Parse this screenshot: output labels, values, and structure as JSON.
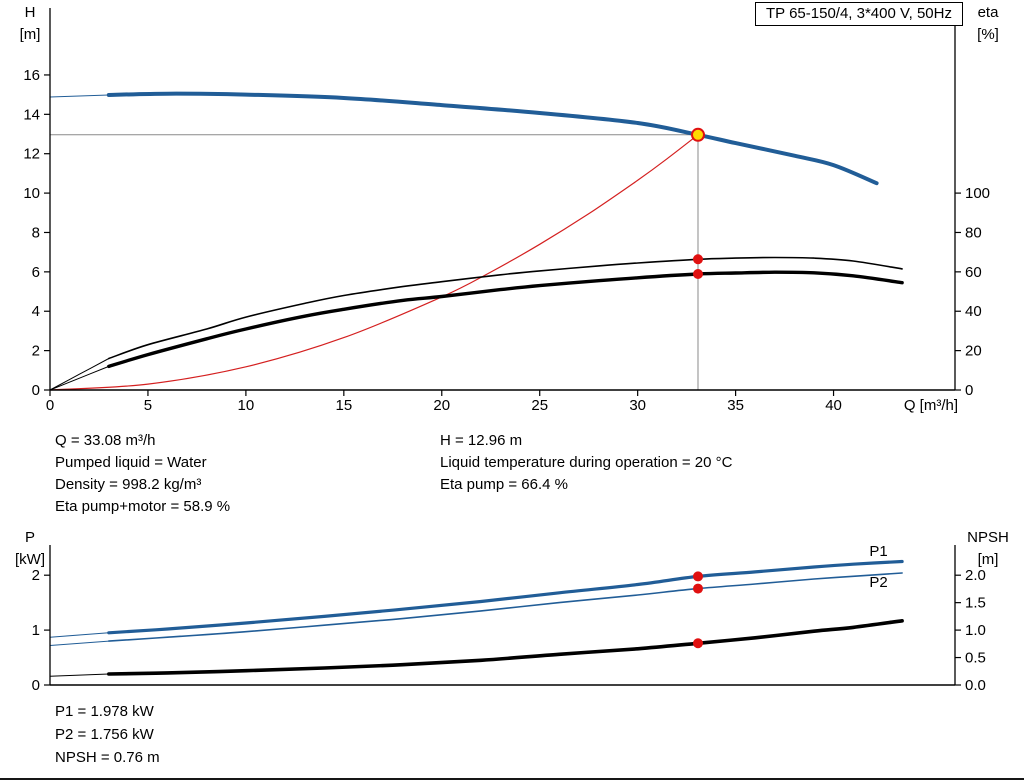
{
  "title_box": "TP 65-150/4, 3*400 V, 50Hz",
  "colors": {
    "curve_blue": "#215d97",
    "system_red": "#d42020",
    "marker_red": "#e01010",
    "duty_yellow": "#ffd800",
    "crosshair_gray": "#8a8a8a"
  },
  "annotations": {
    "left": [
      "Q = 33.08 m³/h",
      "Pumped liquid = Water",
      "Density = 998.2 kg/m³",
      "Eta pump+motor = 58.9 %"
    ],
    "right": [
      "H = 12.96 m",
      "Liquid temperature during operation = 20 °C",
      "Eta pump = 66.4 %"
    ]
  },
  "power_annotations": [
    "P1 = 1.978 kW",
    "P2 = 1.756 kW",
    "NPSH = 0.76 m"
  ],
  "chart_data": [
    {
      "type": "line",
      "title": "TP 65-150/4, 3*400 V, 50Hz",
      "xlabel": "Q [m³/h]",
      "ylabel_left": "H [m]",
      "ylabel_right": "eta [%]",
      "xlim": [
        0,
        46.2
      ],
      "ylim_left": [
        0,
        19.4
      ],
      "ylim_right": [
        0,
        194
      ],
      "grid": false,
      "x_ticks": [
        [
          0,
          "0"
        ],
        [
          5,
          "5"
        ],
        [
          10,
          "10"
        ],
        [
          15,
          "15"
        ],
        [
          20,
          "20"
        ],
        [
          25,
          "25"
        ],
        [
          30,
          "30"
        ],
        [
          35,
          "35"
        ],
        [
          40,
          "40"
        ]
      ],
      "y_ticks_left": [
        [
          0,
          "0"
        ],
        [
          2,
          "2"
        ],
        [
          4,
          "4"
        ],
        [
          6,
          "6"
        ],
        [
          8,
          "8"
        ],
        [
          10,
          "10"
        ],
        [
          12,
          "12"
        ],
        [
          14,
          "14"
        ],
        [
          16,
          "16"
        ]
      ],
      "y_ticks_right": [
        [
          0,
          "0"
        ],
        [
          20,
          "20"
        ],
        [
          40,
          "40"
        ],
        [
          60,
          "60"
        ],
        [
          80,
          "80"
        ],
        [
          100,
          "100"
        ]
      ],
      "duty_point": {
        "q": 33.08,
        "h": 12.96
      },
      "series": [
        {
          "name": "system-curve",
          "axis": "left",
          "color": "#d42020",
          "width": 1.2,
          "points": [
            [
              0,
              0
            ],
            [
              5,
              0.3
            ],
            [
              10,
              1.18
            ],
            [
              15,
              2.66
            ],
            [
              20,
              4.73
            ],
            [
              22.5,
              5.99
            ],
            [
              25,
              7.4
            ],
            [
              27.5,
              8.95
            ],
            [
              30,
              10.65
            ],
            [
              31.5,
              11.74
            ],
            [
              33.08,
              12.96
            ]
          ]
        },
        {
          "name": "eta-pump-curve",
          "axis": "right",
          "color": "#000000",
          "width": 1.6,
          "lead": [
            [
              0,
              0
            ],
            [
              1.5,
              8
            ],
            [
              3,
              16
            ]
          ],
          "points": [
            [
              3,
              16
            ],
            [
              5,
              23
            ],
            [
              8,
              31
            ],
            [
              10,
              37
            ],
            [
              13,
              44
            ],
            [
              15,
              48
            ],
            [
              18,
              52.5
            ],
            [
              20,
              55
            ],
            [
              23,
              58.5
            ],
            [
              25,
              60.5
            ],
            [
              28,
              63
            ],
            [
              30,
              64.5
            ],
            [
              33.08,
              66.4
            ],
            [
              35,
              67
            ],
            [
              37,
              67.3
            ],
            [
              39,
              67
            ],
            [
              41,
              65.5
            ],
            [
              43.5,
              61.5
            ]
          ]
        },
        {
          "name": "eta-pump-motor-curve",
          "axis": "right",
          "color": "#000000",
          "width": 3.4,
          "lead": [
            [
              0,
              0
            ],
            [
              1.5,
              6
            ],
            [
              3,
              12
            ]
          ],
          "points": [
            [
              3,
              12
            ],
            [
              5,
              18
            ],
            [
              8,
              26
            ],
            [
              10,
              31
            ],
            [
              13,
              37.5
            ],
            [
              15,
              41
            ],
            [
              18,
              45.5
            ],
            [
              20,
              47.5
            ],
            [
              23,
              51
            ],
            [
              25,
              53
            ],
            [
              28,
              55.5
            ],
            [
              30,
              57
            ],
            [
              33.08,
              58.9
            ],
            [
              35,
              59.4
            ],
            [
              37,
              59.8
            ],
            [
              39,
              59.5
            ],
            [
              41,
              58
            ],
            [
              43.5,
              54.5
            ]
          ]
        },
        {
          "name": "pump-curve",
          "axis": "left",
          "color": "#215d97",
          "width": 4,
          "lead": [
            [
              0,
              14.88
            ],
            [
              3,
              14.98
            ]
          ],
          "points": [
            [
              3,
              14.98
            ],
            [
              6,
              15.05
            ],
            [
              10,
              15.0
            ],
            [
              15,
              14.83
            ],
            [
              20,
              14.47
            ],
            [
              25,
              14.07
            ],
            [
              30,
              13.56
            ],
            [
              33.08,
              12.96
            ],
            [
              35,
              12.54
            ],
            [
              38,
              11.9
            ],
            [
              40,
              11.42
            ],
            [
              42.2,
              10.5
            ]
          ]
        }
      ],
      "markers": [
        {
          "name": "duty-point",
          "q": 33.08,
          "value": 12.96,
          "axis": "left",
          "fill": "#ffd800",
          "stroke": "#e01010",
          "r": 6
        },
        {
          "name": "eta-pump-point",
          "q": 33.08,
          "value": 66.4,
          "axis": "right",
          "fill": "#e01010",
          "r": 5
        },
        {
          "name": "eta-pump-motor-point",
          "q": 33.08,
          "value": 58.9,
          "axis": "right",
          "fill": "#e01010",
          "r": 5
        }
      ]
    },
    {
      "type": "line",
      "title": "",
      "xlabel": "",
      "ylabel_left": "P [kW]",
      "ylabel_right": "NPSH [m]",
      "xlim": [
        0,
        46.2
      ],
      "ylim_left": [
        0,
        2.55
      ],
      "ylim_right": [
        0,
        2.55
      ],
      "grid": false,
      "x_ticks": [],
      "y_ticks_left": [
        [
          0,
          "0"
        ],
        [
          1,
          "1"
        ],
        [
          2,
          "2"
        ]
      ],
      "y_ticks_right": [
        [
          0,
          "0.0"
        ],
        [
          0.5,
          "0.5"
        ],
        [
          1,
          "1.0"
        ],
        [
          1.5,
          "1.5"
        ],
        [
          2,
          "2.0"
        ]
      ],
      "series": [
        {
          "name": "p1-curve",
          "axis": "left",
          "color": "#215d97",
          "width": 3.2,
          "lead": [
            [
              0,
              0.87
            ],
            [
              3,
              0.95
            ]
          ],
          "points": [
            [
              3,
              0.95
            ],
            [
              6,
              1.02
            ],
            [
              10,
              1.13
            ],
            [
              14,
              1.25
            ],
            [
              18,
              1.38
            ],
            [
              22,
              1.52
            ],
            [
              26,
              1.68
            ],
            [
              30,
              1.83
            ],
            [
              33.08,
              1.978
            ],
            [
              36,
              2.06
            ],
            [
              39,
              2.15
            ],
            [
              41,
              2.2
            ],
            [
              43.5,
              2.25
            ]
          ]
        },
        {
          "name": "p2-curve",
          "axis": "left",
          "color": "#215d97",
          "width": 1.6,
          "lead": [
            [
              0,
              0.72
            ],
            [
              3,
              0.8
            ]
          ],
          "points": [
            [
              3,
              0.8
            ],
            [
              6,
              0.87
            ],
            [
              10,
              0.97
            ],
            [
              14,
              1.09
            ],
            [
              18,
              1.21
            ],
            [
              22,
              1.35
            ],
            [
              26,
              1.5
            ],
            [
              30,
              1.64
            ],
            [
              33.08,
              1.756
            ],
            [
              36,
              1.84
            ],
            [
              39,
              1.93
            ],
            [
              41,
              1.98
            ],
            [
              43.5,
              2.04
            ]
          ]
        },
        {
          "name": "npsh-curve",
          "axis": "right",
          "color": "#000000",
          "width": 3.6,
          "lead": [
            [
              0,
              0.16
            ],
            [
              3,
              0.2
            ]
          ],
          "points": [
            [
              3,
              0.2
            ],
            [
              6,
              0.22
            ],
            [
              10,
              0.26
            ],
            [
              14,
              0.31
            ],
            [
              18,
              0.37
            ],
            [
              22,
              0.45
            ],
            [
              26,
              0.56
            ],
            [
              30,
              0.66
            ],
            [
              33.08,
              0.76
            ],
            [
              36,
              0.86
            ],
            [
              39,
              0.98
            ],
            [
              41,
              1.05
            ],
            [
              43.5,
              1.17
            ]
          ]
        }
      ],
      "markers": [
        {
          "name": "p1-point",
          "q": 33.08,
          "value": 1.978,
          "axis": "left",
          "fill": "#e01010",
          "r": 5
        },
        {
          "name": "p2-point",
          "q": 33.08,
          "value": 1.756,
          "axis": "left",
          "fill": "#e01010",
          "r": 5
        },
        {
          "name": "npsh-point",
          "q": 33.08,
          "value": 0.76,
          "axis": "right",
          "fill": "#e01010",
          "r": 5
        }
      ],
      "curve_labels": [
        {
          "text": "P1",
          "q": 42.3,
          "value": 2.44,
          "axis": "left",
          "color": "#215d97"
        },
        {
          "text": "P2",
          "q": 42.3,
          "value": 1.88,
          "axis": "left",
          "color": "#215d97"
        }
      ]
    }
  ]
}
